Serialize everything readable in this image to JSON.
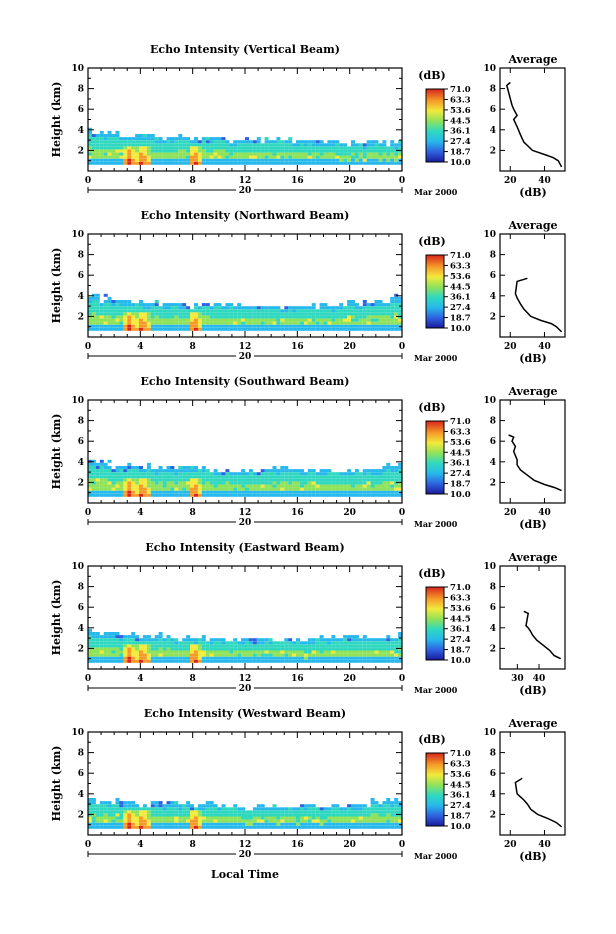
{
  "figure": {
    "time_axis_label": "Local Time",
    "date_day": "20",
    "date_month": "Mar 2000"
  },
  "chart_data": [
    {
      "type": "heatmap",
      "title": "Echo Intensity (Vertical Beam)",
      "ylabel": "Height (km)",
      "xlabel": "Local Time",
      "x_ticks": [
        "0",
        "4",
        "8",
        "12",
        "16",
        "20",
        "0"
      ],
      "x_range": [
        0,
        24
      ],
      "y_ticks": [
        "2",
        "4",
        "6",
        "8",
        "10"
      ],
      "ylim": [
        0,
        10
      ],
      "colorbar_label": "(dB)",
      "colorbar_levels": [
        "71.0",
        "63.3",
        "53.6",
        "44.5",
        "36.1",
        "27.4",
        "18.7",
        "10.0"
      ],
      "echo_top_km": [
        [
          0,
          3.8
        ],
        [
          2,
          3.5
        ],
        [
          4,
          3.4
        ],
        [
          8,
          3.2
        ],
        [
          12,
          3.0
        ],
        [
          16,
          2.9
        ],
        [
          20,
          2.7
        ],
        [
          24,
          2.6
        ]
      ],
      "max_echo_hours": [
        3.0,
        4.0,
        8.0
      ],
      "average_panel": {
        "title": "Average",
        "xlabel": "(dB)",
        "x_ticks": [
          "20",
          "40"
        ],
        "xlim": [
          14,
          52
        ],
        "y_ticks": [
          "2",
          "4",
          "6",
          "8",
          "10"
        ],
        "ylim": [
          0,
          10
        ],
        "profile": [
          [
            50,
            0.4
          ],
          [
            48,
            1.0
          ],
          [
            45,
            1.3
          ],
          [
            40,
            1.6
          ],
          [
            33,
            2.0
          ],
          [
            28,
            2.8
          ],
          [
            26,
            3.5
          ],
          [
            24,
            4.3
          ],
          [
            22,
            5.0
          ],
          [
            24,
            5.4
          ],
          [
            22,
            6.0
          ],
          [
            21,
            6.4
          ],
          [
            18,
            8.3
          ],
          [
            20,
            8.6
          ]
        ]
      }
    },
    {
      "type": "heatmap",
      "title": "Echo Intensity (Northward Beam)",
      "ylabel": "Height (km)",
      "xlabel": "Local Time",
      "x_ticks": [
        "0",
        "4",
        "8",
        "12",
        "16",
        "20",
        "0"
      ],
      "x_range": [
        0,
        24
      ],
      "y_ticks": [
        "2",
        "4",
        "6",
        "8",
        "10"
      ],
      "ylim": [
        0,
        10
      ],
      "colorbar_label": "(dB)",
      "colorbar_levels": [
        "71.0",
        "63.3",
        "53.6",
        "44.5",
        "36.1",
        "27.4",
        "18.7",
        "10.0"
      ],
      "echo_top_km": [
        [
          0,
          4.0
        ],
        [
          2,
          3.5
        ],
        [
          4,
          3.3
        ],
        [
          8,
          3.1
        ],
        [
          12,
          3.0
        ],
        [
          16,
          2.9
        ],
        [
          20,
          3.2
        ],
        [
          24,
          3.8
        ]
      ],
      "max_echo_hours": [
        3.0,
        4.0,
        8.0
      ],
      "average_panel": {
        "title": "Average",
        "xlabel": "(dB)",
        "x_ticks": [
          "20",
          "40"
        ],
        "xlim": [
          14,
          52
        ],
        "y_ticks": [
          "2",
          "4",
          "6",
          "8",
          "10"
        ],
        "ylim": [
          0,
          10
        ],
        "profile": [
          [
            50,
            0.5
          ],
          [
            47,
            1.0
          ],
          [
            44,
            1.3
          ],
          [
            38,
            1.6
          ],
          [
            32,
            2.0
          ],
          [
            28,
            2.7
          ],
          [
            26,
            3.2
          ],
          [
            24,
            3.8
          ],
          [
            23,
            4.2
          ],
          [
            24,
            5.4
          ],
          [
            30,
            5.7
          ]
        ]
      }
    },
    {
      "type": "heatmap",
      "title": "Echo Intensity (Southward Beam)",
      "ylabel": "Height (km)",
      "xlabel": "Local Time",
      "x_ticks": [
        "0",
        "4",
        "8",
        "12",
        "16",
        "20",
        "0"
      ],
      "x_range": [
        0,
        24
      ],
      "y_ticks": [
        "2",
        "4",
        "6",
        "8",
        "10"
      ],
      "ylim": [
        0,
        10
      ],
      "colorbar_label": "(dB)",
      "colorbar_levels": [
        "71.0",
        "63.3",
        "53.6",
        "44.5",
        "36.1",
        "27.4",
        "18.7",
        "10.0"
      ],
      "echo_top_km": [
        [
          0,
          4.2
        ],
        [
          2,
          3.6
        ],
        [
          4,
          3.4
        ],
        [
          8,
          3.3
        ],
        [
          12,
          3.2
        ],
        [
          16,
          3.3
        ],
        [
          20,
          3.0
        ],
        [
          24,
          3.8
        ]
      ],
      "max_echo_hours": [
        3.0,
        4.0,
        8.0
      ],
      "average_panel": {
        "title": "Average",
        "xlabel": "(dB)",
        "x_ticks": [
          "20",
          "40"
        ],
        "xlim": [
          14,
          52
        ],
        "y_ticks": [
          "2",
          "4",
          "6",
          "8",
          "10"
        ],
        "ylim": [
          0,
          10
        ],
        "profile": [
          [
            50,
            1.2
          ],
          [
            46,
            1.5
          ],
          [
            40,
            1.8
          ],
          [
            34,
            2.2
          ],
          [
            30,
            2.7
          ],
          [
            26,
            3.2
          ],
          [
            24,
            3.7
          ],
          [
            24,
            4.2
          ],
          [
            22,
            5.0
          ],
          [
            23,
            5.5
          ],
          [
            21,
            6.0
          ],
          [
            22,
            6.4
          ],
          [
            19,
            6.6
          ]
        ]
      }
    },
    {
      "type": "heatmap",
      "title": "Echo Intensity (Eastward Beam)",
      "ylabel": "Height (km)",
      "xlabel": "Local Time",
      "x_ticks": [
        "0",
        "4",
        "8",
        "12",
        "16",
        "20",
        "0"
      ],
      "x_range": [
        0,
        24
      ],
      "y_ticks": [
        "2",
        "4",
        "6",
        "8",
        "10"
      ],
      "ylim": [
        0,
        10
      ],
      "colorbar_label": "(dB)",
      "colorbar_levels": [
        "71.0",
        "63.3",
        "53.6",
        "44.5",
        "36.1",
        "27.4",
        "18.7",
        "10.0"
      ],
      "echo_top_km": [
        [
          0,
          3.6
        ],
        [
          2,
          3.3
        ],
        [
          4,
          3.2
        ],
        [
          8,
          3.0
        ],
        [
          12,
          2.9
        ],
        [
          16,
          2.8
        ],
        [
          20,
          3.0
        ],
        [
          24,
          3.2
        ]
      ],
      "max_echo_hours": [
        3.0,
        4.0,
        8.0
      ],
      "average_panel": {
        "title": "Average",
        "xlabel": "(dB)",
        "x_ticks": [
          "30",
          "40"
        ],
        "xlim": [
          22,
          52
        ],
        "y_ticks": [
          "2",
          "4",
          "6",
          "8",
          "10"
        ],
        "ylim": [
          0,
          10
        ],
        "profile": [
          [
            50,
            1.0
          ],
          [
            47,
            1.3
          ],
          [
            45,
            1.8
          ],
          [
            42,
            2.3
          ],
          [
            39,
            2.8
          ],
          [
            37,
            3.3
          ],
          [
            36,
            3.7
          ],
          [
            35,
            4.0
          ],
          [
            34,
            4.2
          ],
          [
            35,
            5.4
          ],
          [
            33,
            5.6
          ]
        ]
      }
    },
    {
      "type": "heatmap",
      "title": "Echo Intensity (Westward Beam)",
      "ylabel": "Height (km)",
      "xlabel": "Local Time",
      "x_ticks": [
        "0",
        "4",
        "8",
        "12",
        "16",
        "20",
        "0"
      ],
      "x_range": [
        0,
        24
      ],
      "y_ticks": [
        "2",
        "4",
        "6",
        "8",
        "10"
      ],
      "ylim": [
        0,
        10
      ],
      "colorbar_label": "(dB)",
      "colorbar_levels": [
        "71.0",
        "63.3",
        "53.6",
        "44.5",
        "36.1",
        "27.4",
        "18.7",
        "10.0"
      ],
      "echo_top_km": [
        [
          0,
          3.4
        ],
        [
          2,
          3.2
        ],
        [
          4,
          3.0
        ],
        [
          8,
          2.9
        ],
        [
          12,
          2.8
        ],
        [
          16,
          2.7
        ],
        [
          20,
          2.9
        ],
        [
          24,
          3.4
        ]
      ],
      "max_echo_hours": [
        3.0,
        4.0,
        8.0
      ],
      "average_panel": {
        "title": "Average",
        "xlabel": "(dB)",
        "x_ticks": [
          "20",
          "40"
        ],
        "xlim": [
          14,
          52
        ],
        "y_ticks": [
          "2",
          "4",
          "6",
          "8",
          "10"
        ],
        "ylim": [
          0,
          10
        ],
        "profile": [
          [
            50,
            0.8
          ],
          [
            47,
            1.2
          ],
          [
            42,
            1.6
          ],
          [
            36,
            2.0
          ],
          [
            32,
            2.5
          ],
          [
            30,
            3.0
          ],
          [
            28,
            3.4
          ],
          [
            26,
            3.7
          ],
          [
            24,
            4.0
          ],
          [
            23,
            5.1
          ],
          [
            27,
            5.5
          ]
        ]
      }
    }
  ]
}
